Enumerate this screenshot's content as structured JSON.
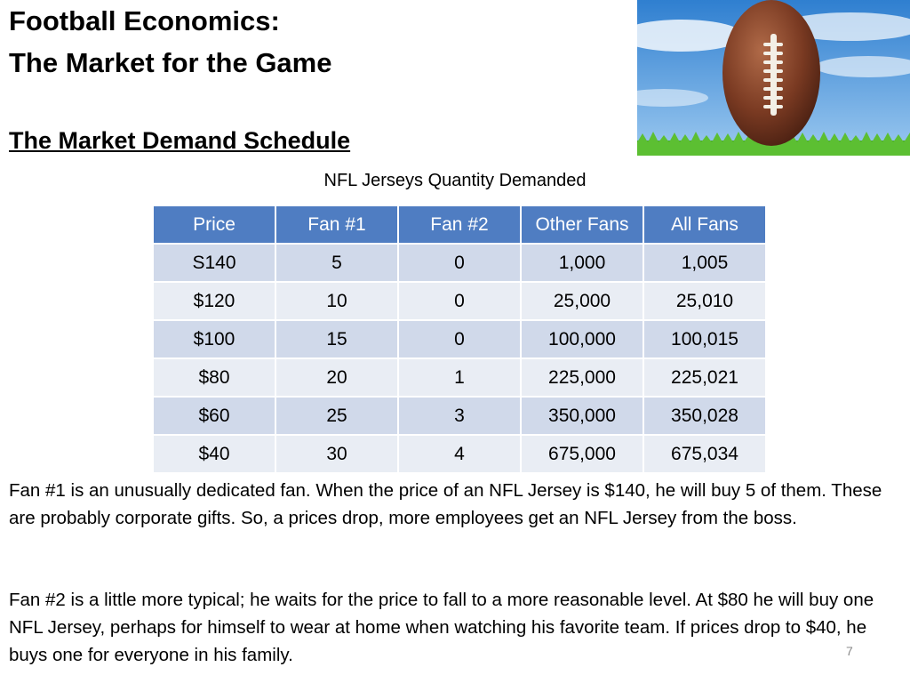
{
  "slide": {
    "title_line1": "Football Economics:",
    "title_line2": "The Market for the Game",
    "subtitle": "The Market Demand Schedule ",
    "image_description": "football-on-grass-photo",
    "table_caption": "NFL Jerseys  Quantity Demanded",
    "table": {
      "headers": [
        "Price",
        "Fan #1",
        "Fan #2",
        "Other Fans",
        "All Fans"
      ],
      "rows": [
        [
          "S140",
          "5",
          "0",
          "1,000",
          "1,005"
        ],
        [
          "$120",
          "10",
          "0",
          "25,000",
          "25,010"
        ],
        [
          "$100",
          "15",
          "0",
          "100,000",
          "100,015"
        ],
        [
          "$80",
          "20",
          "1",
          "225,000",
          "225,021"
        ],
        [
          "$60",
          "25",
          "3",
          "350,000",
          "350,028"
        ],
        [
          "$40",
          "30",
          "4",
          "675,000",
          "675,034"
        ]
      ]
    },
    "paragraph1": "Fan #1 is an unusually dedicated fan.   When the price of an NFL Jersey is $140, he will buy 5 of them.  These are probably corporate gifts.  So, a prices drop, more employees get an NFL Jersey from the boss.",
    "paragraph2": "Fan #2  is a little more typical; he waits for the price to fall to a more reasonable level.  At $80 he will buy one NFL Jersey, perhaps for himself to wear at home when watching his favorite team.  If prices drop to $40, he buys one for everyone in his family.",
    "page_number": "7"
  },
  "colors": {
    "header_bg": "#4f7dc2",
    "row_odd_bg": "#d0d9ea",
    "row_even_bg": "#e9edf4"
  }
}
